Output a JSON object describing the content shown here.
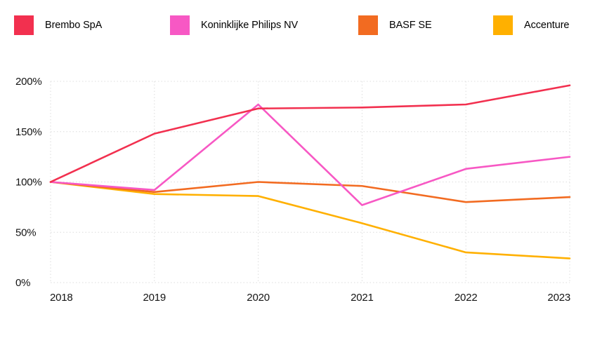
{
  "chart_data": {
    "type": "line",
    "title": "",
    "xlabel": "",
    "ylabel": "",
    "x": [
      "2018",
      "2019",
      "2020",
      "2021",
      "2022",
      "2023"
    ],
    "series": [
      {
        "name": "Brembo SpA",
        "color": "#F2304F",
        "values": [
          100,
          148,
          173,
          174,
          177,
          196
        ]
      },
      {
        "name": "Koninklijke Philips NV",
        "color": "#F758C4",
        "values": [
          100,
          92,
          177,
          77,
          113,
          125
        ]
      },
      {
        "name": "BASF SE",
        "color": "#F26B21",
        "values": [
          100,
          90,
          100,
          96,
          80,
          85
        ]
      },
      {
        "name": "Accenture",
        "color": "#FFB000",
        "values": [
          100,
          88,
          86,
          59,
          30,
          24
        ]
      }
    ],
    "ylim": [
      0,
      200
    ],
    "yticks": [
      0,
      50,
      100,
      150,
      200
    ],
    "y_tick_suffix": "%",
    "grid": "dotted-both-axes",
    "legend_position": "top"
  }
}
